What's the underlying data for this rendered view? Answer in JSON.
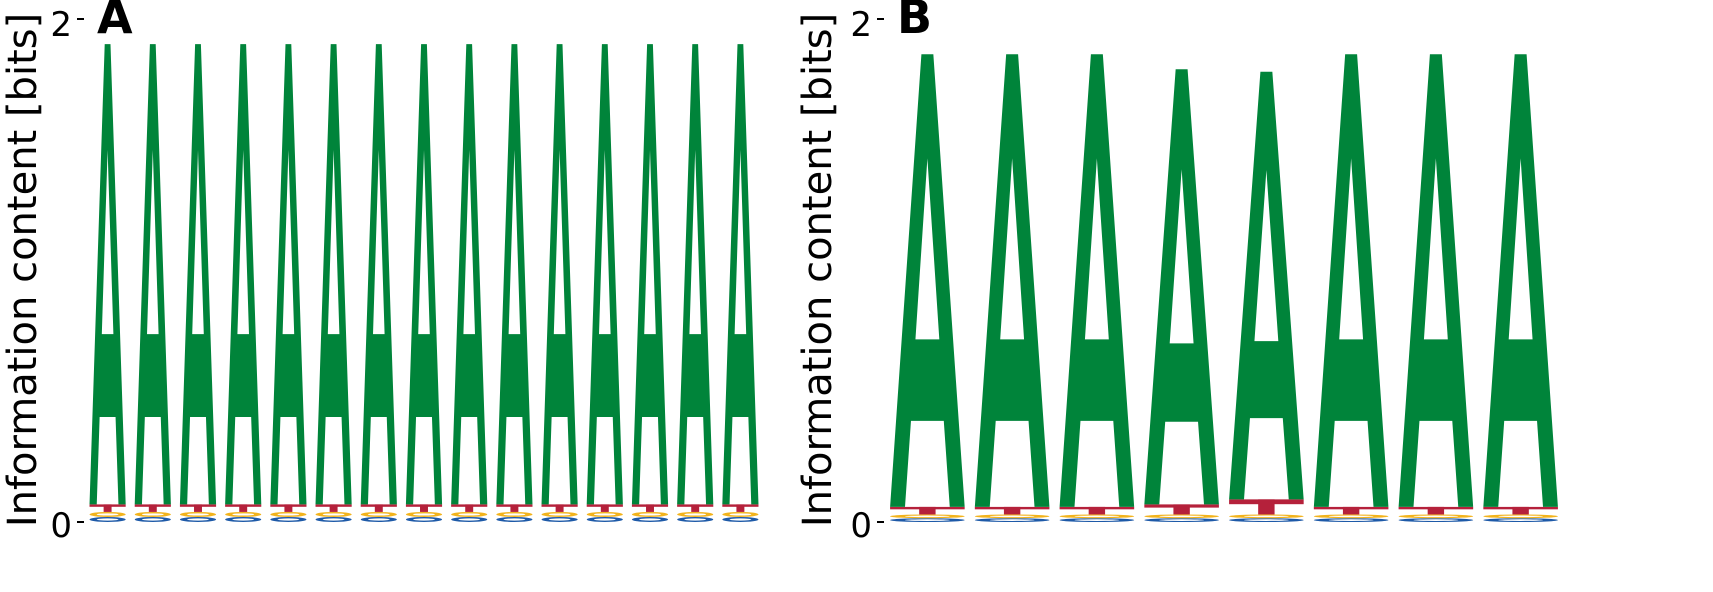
{
  "chart_data": [
    {
      "type": "sequence-logo",
      "panel_label": "A",
      "ylabel": "Information content [bits]",
      "ylim": [
        0,
        2
      ],
      "yticks": [
        "0",
        "2"
      ],
      "grid": false,
      "legend": "none",
      "positions": 15,
      "letters": [
        {
          "letter": "A",
          "color": "#00843a",
          "heights": [
            1.83,
            1.83,
            1.83,
            1.83,
            1.83,
            1.83,
            1.83,
            1.83,
            1.83,
            1.83,
            1.83,
            1.83,
            1.83,
            1.83,
            1.83
          ]
        },
        {
          "letter": "T",
          "color": "#b5213b",
          "heights": [
            0.03,
            0.03,
            0.03,
            0.03,
            0.03,
            0.03,
            0.03,
            0.03,
            0.03,
            0.03,
            0.03,
            0.03,
            0.03,
            0.03,
            0.03
          ]
        },
        {
          "letter": "C",
          "color": "#1e5aa8",
          "heights": [
            0.02,
            0.02,
            0.02,
            0.02,
            0.02,
            0.02,
            0.02,
            0.02,
            0.02,
            0.02,
            0.02,
            0.02,
            0.02,
            0.02,
            0.02
          ]
        },
        {
          "letter": "G",
          "color": "#f2b31c",
          "heights": [
            0.02,
            0.02,
            0.02,
            0.02,
            0.02,
            0.02,
            0.02,
            0.02,
            0.02,
            0.02,
            0.02,
            0.02,
            0.02,
            0.02,
            0.02
          ]
        }
      ]
    },
    {
      "type": "sequence-logo",
      "panel_label": "B",
      "ylabel": "Information content [bits]",
      "ylim": [
        0,
        2
      ],
      "yticks": [
        "0",
        "2"
      ],
      "grid": false,
      "legend": "none",
      "positions": 8,
      "letters": [
        {
          "letter": "A",
          "color": "#00843a",
          "heights": [
            1.8,
            1.8,
            1.8,
            1.73,
            1.7,
            1.8,
            1.8,
            1.8
          ]
        },
        {
          "letter": "T",
          "color": "#b5213b",
          "heights": [
            0.03,
            0.03,
            0.03,
            0.04,
            0.06,
            0.03,
            0.03,
            0.03
          ]
        },
        {
          "letter": "C",
          "color": "#1e5aa8",
          "heights": [
            0.015,
            0.015,
            0.015,
            0.015,
            0.015,
            0.015,
            0.015,
            0.015
          ]
        },
        {
          "letter": "G",
          "color": "#f2b31c",
          "heights": [
            0.015,
            0.015,
            0.015,
            0.015,
            0.015,
            0.015,
            0.015,
            0.015
          ]
        }
      ]
    }
  ]
}
